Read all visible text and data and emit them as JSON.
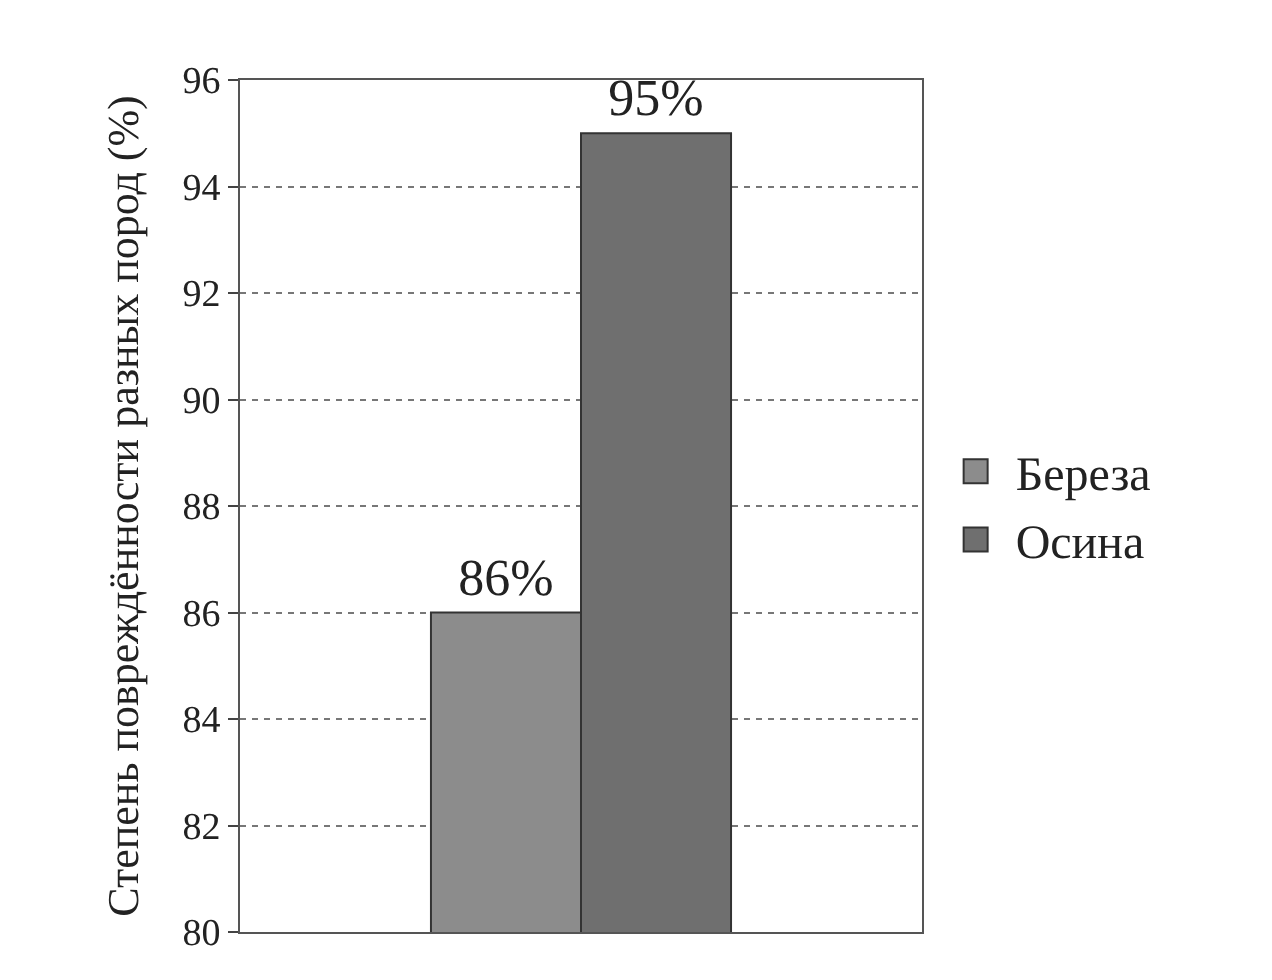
{
  "chart_data": {
    "type": "bar",
    "ylabel": "Степень повреждённости разных пород (%)",
    "categories": [
      null
    ],
    "series": [
      {
        "name": "Береза",
        "color": "#8c8c8c",
        "values": [
          86
        ],
        "value_labels": [
          "86%"
        ]
      },
      {
        "name": "Осина",
        "color": "#6f6f6f",
        "values": [
          95
        ],
        "value_labels": [
          "95%"
        ]
      }
    ],
    "ylim": [
      80,
      96
    ],
    "yticks": [
      80,
      82,
      84,
      86,
      88,
      90,
      92,
      94,
      96
    ],
    "grid": "y",
    "legend": "right"
  }
}
